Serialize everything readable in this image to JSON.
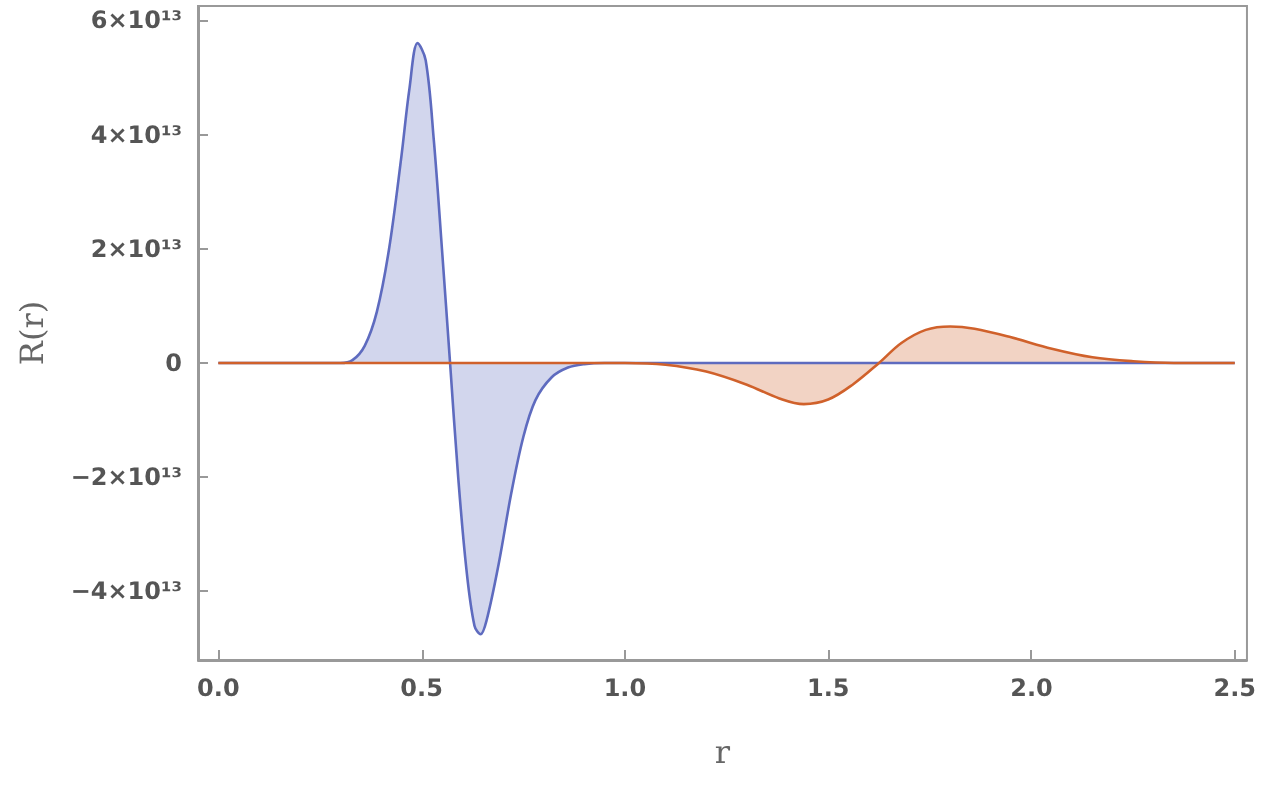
{
  "chart_data": {
    "type": "area",
    "xlabel": "r",
    "ylabel": "R(r)",
    "xlim": [
      -0.05,
      2.53
    ],
    "ylim": [
      -52000000000000.0,
      62500000000000.0
    ],
    "xticks": [
      {
        "value": 0,
        "label": "0.0"
      },
      {
        "value": 0.5,
        "label": "0.5"
      },
      {
        "value": 1,
        "label": "1.0"
      },
      {
        "value": 1.5,
        "label": "1.5"
      },
      {
        "value": 2,
        "label": "2.0"
      },
      {
        "value": 2.5,
        "label": "2.5"
      }
    ],
    "yticks": [
      {
        "value": -40000000000000.0,
        "label": "−4×10¹³"
      },
      {
        "value": -20000000000000.0,
        "label": "−2×10¹³"
      },
      {
        "value": 0,
        "label": "0"
      },
      {
        "value": 20000000000000.0,
        "label": "2×10¹³"
      },
      {
        "value": 40000000000000.0,
        "label": "4×10¹³"
      },
      {
        "value": 60000000000000.0,
        "label": "6×10¹³"
      }
    ],
    "grid": false,
    "marker": "none",
    "line_style": "solid",
    "series": [
      {
        "color": "#5e6bbf",
        "x": [
          0,
          0.3,
          0.33,
          0.36,
          0.39,
          0.42,
          0.45,
          0.47,
          0.49,
          0.51,
          0.53,
          0.55,
          0.57,
          0.59,
          0.61,
          0.63,
          0.645,
          0.66,
          0.69,
          0.72,
          0.75,
          0.78,
          0.82,
          0.86,
          0.9,
          0.95,
          2.5
        ],
        "values": [
          0,
          0,
          500000000000.0,
          3000000000000.0,
          9000000000000.0,
          20000000000000.0,
          36000000000000.0,
          48000000000000.0,
          56000000000000.0,
          53000000000000.0,
          39000000000000.0,
          20000000000000.0,
          0,
          -20000000000000.0,
          -36000000000000.0,
          -46000000000000.0,
          -47500000000000.0,
          -45000000000000.0,
          -35000000000000.0,
          -23000000000000.0,
          -13000000000000.0,
          -6500000000000.0,
          -2500000000000.0,
          -800000000000.0,
          -200000000000.0,
          0,
          0
        ]
      },
      {
        "color": "#d0612b",
        "x": [
          0,
          1.0,
          1.1,
          1.2,
          1.3,
          1.38,
          1.44,
          1.5,
          1.56,
          1.625,
          1.68,
          1.74,
          1.8,
          1.86,
          1.95,
          2.05,
          2.15,
          2.25,
          2.35,
          2.5
        ],
        "values": [
          0,
          0,
          -300000000000.0,
          -1500000000000.0,
          -3800000000000.0,
          -6200000000000.0,
          -7200000000000.0,
          -6400000000000.0,
          -3800000000000.0,
          0,
          3500000000000.0,
          5800000000000.0,
          6400000000000.0,
          6000000000000.0,
          4500000000000.0,
          2500000000000.0,
          1000000000000.0,
          300000000000.0,
          0,
          0
        ]
      }
    ]
  }
}
